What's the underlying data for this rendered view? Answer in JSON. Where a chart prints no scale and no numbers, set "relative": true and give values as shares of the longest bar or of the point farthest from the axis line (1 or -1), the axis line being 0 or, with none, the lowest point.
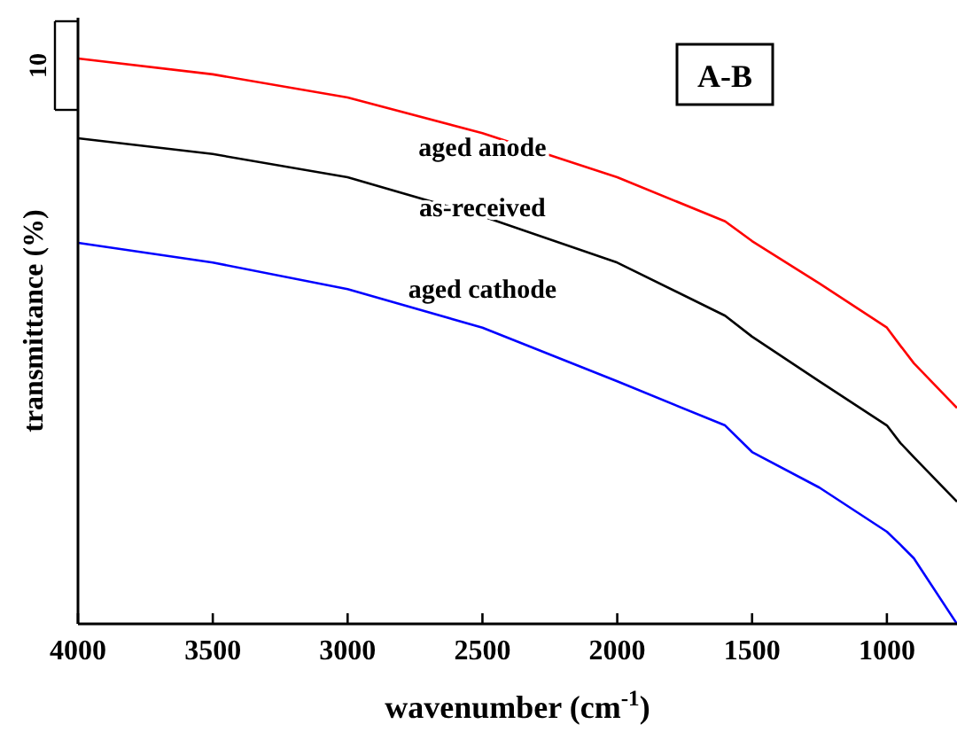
{
  "chart_data": {
    "type": "line",
    "relative": true,
    "xlabel": "wavenumber (cm$^{-1}$)",
    "ylabel": "transmittance (%)",
    "xlim": [
      4000,
      740
    ],
    "xticks": [
      4000,
      3500,
      3000,
      2500,
      2000,
      1500,
      1000
    ],
    "x": [
      4000,
      3500,
      3000,
      2500,
      2000,
      1600,
      1500,
      1250,
      1000,
      950,
      900,
      740
    ],
    "legend": false,
    "grid": false,
    "annotations": [
      "10",
      "A-B"
    ],
    "series": [
      {
        "name": "aged anode",
        "color": "#ff0000",
        "values": [
          1.0,
          0.972,
          0.931,
          0.868,
          0.79,
          0.712,
          0.677,
          0.602,
          0.524,
          0.492,
          0.461,
          0.382
        ]
      },
      {
        "name": "as-received",
        "color": "#000000",
        "values": [
          0.859,
          0.831,
          0.79,
          0.721,
          0.639,
          0.545,
          0.508,
          0.429,
          0.351,
          0.32,
          0.295,
          0.216
        ]
      },
      {
        "name": "aged cathode",
        "color": "#0000ff",
        "values": [
          0.674,
          0.639,
          0.592,
          0.524,
          0.429,
          0.351,
          0.304,
          0.241,
          0.163,
          0.14,
          0.116,
          0.0
        ]
      }
    ]
  }
}
